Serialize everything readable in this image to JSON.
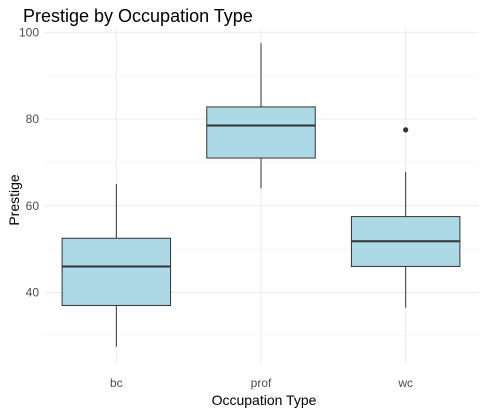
{
  "chart_data": {
    "type": "box",
    "title": "Prestige by Occupation Type",
    "xlabel": "Occupation Type",
    "ylabel": "Prestige",
    "categories": [
      "bc",
      "prof",
      "wc"
    ],
    "boxes": [
      {
        "category": "bc",
        "min": 27.5,
        "q1": 37.0,
        "median": 46.0,
        "q3": 52.5,
        "max": 65.0,
        "outliers": []
      },
      {
        "category": "prof",
        "min": 64.0,
        "q1": 71.0,
        "median": 78.5,
        "q3": 82.8,
        "max": 97.5,
        "outliers": []
      },
      {
        "category": "wc",
        "min": 36.5,
        "q1": 46.0,
        "median": 51.8,
        "q3": 57.5,
        "max": 67.8,
        "outliers": [
          77.5
        ]
      }
    ],
    "yticks": [
      40,
      60,
      80,
      100
    ],
    "ylim": [
      23.5,
      101
    ],
    "grid": true,
    "box_color": "#add8e6",
    "line_color": "#333333"
  }
}
